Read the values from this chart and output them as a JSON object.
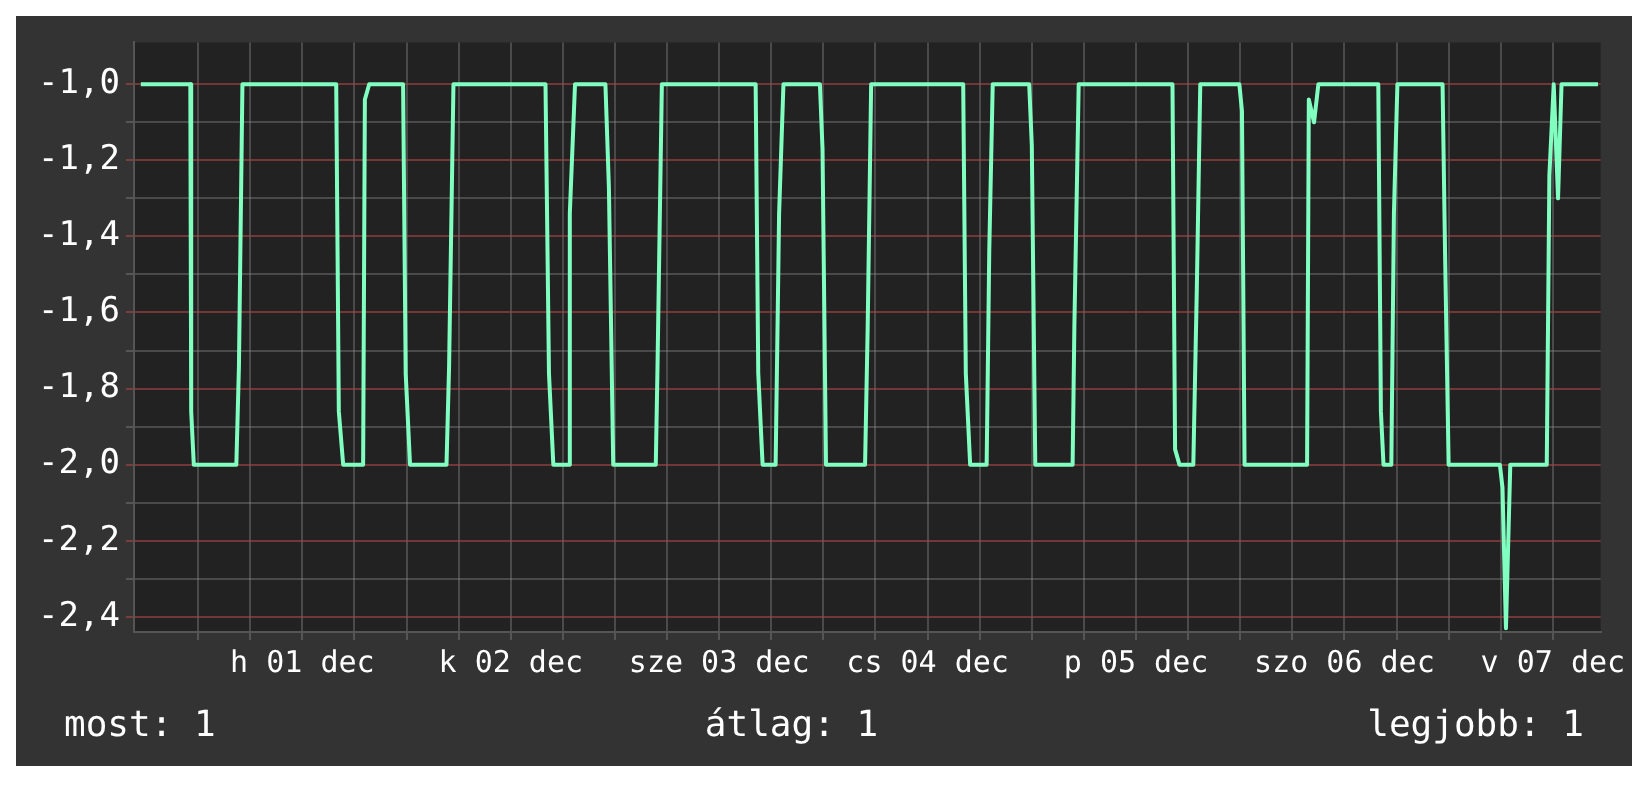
{
  "chart_data": {
    "type": "line",
    "x": [
      "--11-30T17:24",
      "--11-30T23:06",
      "--11-30T23:12",
      "--11-30T23:30",
      "--12-01T04:24",
      "--12-01T04:42",
      "--12-01T05:06",
      "--12-01T15:54",
      "--12-01T16:12",
      "--12-01T16:42",
      "--12-01T19:00",
      "--12-01T19:12",
      "--12-01T19:42",
      "--12-01T23:36",
      "--12-01T23:54",
      "--12-02T00:24",
      "--12-02T04:36",
      "--12-02T04:54",
      "--12-02T05:24",
      "--12-02T16:00",
      "--12-02T16:24",
      "--12-02T16:54",
      "--12-02T18:36",
      "--12-02T18:48",
      "--12-02T19:24",
      "--12-02T22:54",
      "--12-02T23:18",
      "--12-02T23:48",
      "--12-03T04:42",
      "--12-03T04:54",
      "--12-03T05:24",
      "--12-03T16:12",
      "--12-03T16:30",
      "--12-03T17:00",
      "--12-03T18:30",
      "--12-03T18:54",
      "--12-03T19:24",
      "--12-03T23:36",
      "--12-03T23:54",
      "--12-04T00:18",
      "--12-04T04:48",
      "--12-04T05:06",
      "--12-04T05:30",
      "--12-04T16:06",
      "--12-04T16:24",
      "--12-04T16:54",
      "--12-04T18:48",
      "--12-04T19:06",
      "--12-04T19:30",
      "--12-04T23:42",
      "--12-05T00:00",
      "--12-05T00:24",
      "--12-05T04:42",
      "--12-05T04:54",
      "--12-05T05:24",
      "--12-05T16:12",
      "--12-05T16:30",
      "--12-05T17:00",
      "--12-05T18:36",
      "--12-05T19:00",
      "--12-05T19:24",
      "--12-05T23:54",
      "--12-06T00:12",
      "--12-06T00:30",
      "--12-06T07:42",
      "--12-06T07:54",
      "--12-06T08:30",
      "--12-06T09:00",
      "--12-06T15:54",
      "--12-06T16:12",
      "--12-06T16:30",
      "--12-06T17:24",
      "--12-06T17:42",
      "--12-06T18:06",
      "--12-06T23:18",
      "--12-06T23:36",
      "--12-07T00:00",
      "--12-07T05:54",
      "--12-07T06:12",
      "--12-07T06:36",
      "--12-07T07:06",
      "--12-07T11:18",
      "--12-07T11:36",
      "--12-07T12:06",
      "--12-07T12:36",
      "--12-07T13:00",
      "--12-07T17:12"
    ],
    "series": [
      {
        "color": "#80ffc0",
        "values": [
          -1.0,
          -1.0,
          -1.86,
          -2.0,
          -2.0,
          -1.74,
          -1.0,
          -1.0,
          -1.86,
          -2.0,
          -2.0,
          -1.04,
          -1.0,
          -1.0,
          -1.76,
          -2.0,
          -2.0,
          -1.74,
          -1.0,
          -1.0,
          -1.76,
          -2.0,
          -2.0,
          -1.34,
          -1.0,
          -1.0,
          -1.27,
          -2.0,
          -2.0,
          -1.74,
          -1.0,
          -1.0,
          -1.76,
          -2.0,
          -2.0,
          -1.34,
          -1.0,
          -1.0,
          -1.17,
          -2.0,
          -2.0,
          -1.64,
          -1.0,
          -1.0,
          -1.76,
          -2.0,
          -2.0,
          -1.44,
          -1.0,
          -1.0,
          -1.16,
          -2.0,
          -2.0,
          -1.64,
          -1.0,
          -1.0,
          -1.96,
          -2.0,
          -2.0,
          -1.54,
          -1.0,
          -1.0,
          -1.07,
          -2.0,
          -2.0,
          -1.04,
          -1.1,
          -1.0,
          -1.0,
          -1.86,
          -2.0,
          -2.0,
          -1.34,
          -1.0,
          -1.0,
          -1.46,
          -2.0,
          -2.0,
          -2.06,
          -2.43,
          -2.0,
          -2.0,
          -1.24,
          -1.0,
          -1.3,
          -1.0,
          -1.0
        ]
      }
    ],
    "xlim": [
      "--11-30T16:36",
      "--12-07T17:30"
    ],
    "xticks": [
      {
        "value": "--12-01T00:00",
        "label": null
      },
      {
        "value": "--12-01T06:00",
        "label": null
      },
      {
        "value": "--12-01T12:00",
        "label": "h 01 dec"
      },
      {
        "value": "--12-01T18:00",
        "label": null
      },
      {
        "value": "--12-02T00:00",
        "label": null
      },
      {
        "value": "--12-02T06:00",
        "label": null
      },
      {
        "value": "--12-02T12:00",
        "label": "k 02 dec"
      },
      {
        "value": "--12-02T18:00",
        "label": null
      },
      {
        "value": "--12-03T00:00",
        "label": null
      },
      {
        "value": "--12-03T06:00",
        "label": null
      },
      {
        "value": "--12-03T12:00",
        "label": "sze 03 dec"
      },
      {
        "value": "--12-03T18:00",
        "label": null
      },
      {
        "value": "--12-04T00:00",
        "label": null
      },
      {
        "value": "--12-04T06:00",
        "label": null
      },
      {
        "value": "--12-04T12:00",
        "label": "cs 04 dec"
      },
      {
        "value": "--12-04T18:00",
        "label": null
      },
      {
        "value": "--12-05T00:00",
        "label": null
      },
      {
        "value": "--12-05T06:00",
        "label": null
      },
      {
        "value": "--12-05T12:00",
        "label": "p 05 dec"
      },
      {
        "value": "--12-05T18:00",
        "label": null
      },
      {
        "value": "--12-06T00:00",
        "label": null
      },
      {
        "value": "--12-06T06:00",
        "label": null
      },
      {
        "value": "--12-06T12:00",
        "label": "szo 06 dec"
      },
      {
        "value": "--12-06T18:00",
        "label": null
      },
      {
        "value": "--12-07T00:00",
        "label": null
      },
      {
        "value": "--12-07T06:00",
        "label": null
      },
      {
        "value": "--12-07T12:00",
        "label": "v 07 dec"
      }
    ],
    "ylim": [
      -2.44,
      -0.89
    ],
    "yticks": [
      {
        "value": -1.0,
        "label": "-1,0"
      },
      {
        "value": -1.1,
        "label": null
      },
      {
        "value": -1.2,
        "label": "-1,2"
      },
      {
        "value": -1.3,
        "label": null
      },
      {
        "value": -1.4,
        "label": "-1,4"
      },
      {
        "value": -1.5,
        "label": null
      },
      {
        "value": -1.6,
        "label": "-1,6"
      },
      {
        "value": -1.7,
        "label": null
      },
      {
        "value": -1.8,
        "label": "-1,8"
      },
      {
        "value": -1.9,
        "label": null
      },
      {
        "value": -2.0,
        "label": "-2,0"
      },
      {
        "value": -2.1,
        "label": null
      },
      {
        "value": -2.2,
        "label": "-2,2"
      },
      {
        "value": -2.3,
        "label": null
      },
      {
        "value": -2.4,
        "label": "-2,4"
      }
    ],
    "grid": true,
    "marker": "none",
    "line_style": "solid",
    "annotations": [
      "most: 1",
      "átlag: 1",
      "legjobb: 1"
    ]
  }
}
